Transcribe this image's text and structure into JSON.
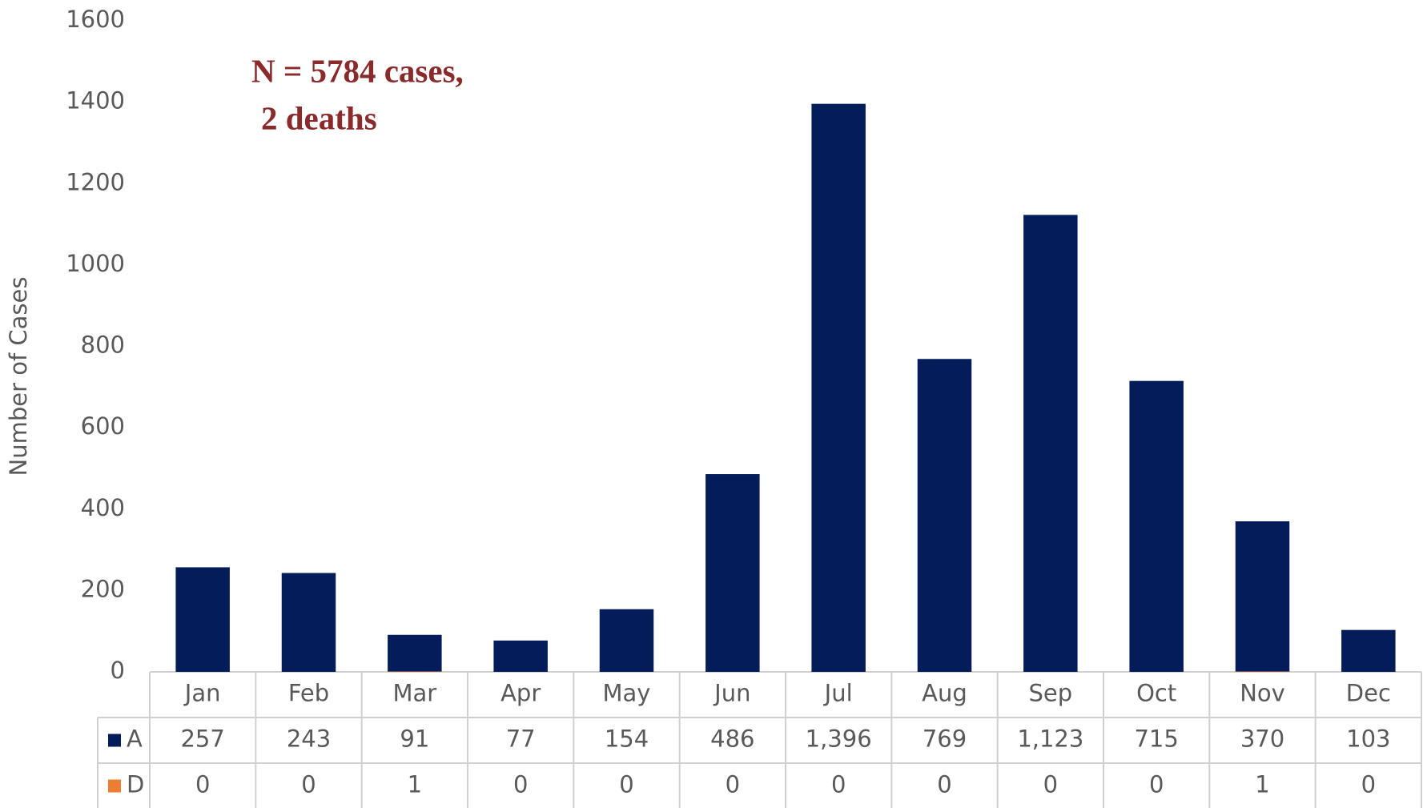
{
  "chart_data": {
    "type": "bar",
    "y_axis_label": "Number of Cases",
    "annotation": [
      "N = 5784 cases,",
      "2 deaths"
    ],
    "categories": [
      "Jan",
      "Feb",
      "Mar",
      "Apr",
      "May",
      "Jun",
      "Jul",
      "Aug",
      "Sep",
      "Oct",
      "Nov",
      "Dec"
    ],
    "series": [
      {
        "name": "A",
        "color": "#041c5a",
        "values": [
          257,
          243,
          91,
          77,
          154,
          486,
          1396,
          769,
          1123,
          715,
          370,
          103
        ],
        "value_labels": [
          "257",
          "243",
          "91",
          "77",
          "154",
          "486",
          "1,396",
          "769",
          "1,123",
          "715",
          "370",
          "103"
        ]
      },
      {
        "name": "D",
        "color": "#ed7d31",
        "values": [
          0,
          0,
          1,
          0,
          0,
          0,
          0,
          0,
          0,
          0,
          1,
          0
        ]
      }
    ],
    "ylim": [
      0,
      1600
    ],
    "yticks": [
      0,
      200,
      400,
      600,
      800,
      1000,
      1200,
      1400,
      1600
    ],
    "grid": false
  }
}
